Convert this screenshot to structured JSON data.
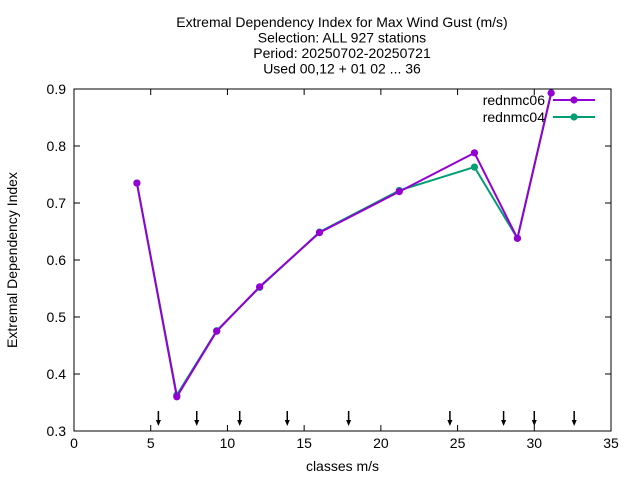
{
  "chart_data": {
    "type": "line",
    "title_lines": [
      "Extremal Dependency Index  for Max Wind Gust (m/s)",
      "Selection: ALL    927 stations",
      "Period: 20250702-20250721",
      "Used 00,12 + 01 02 ... 36"
    ],
    "xlabel": "classes m/s",
    "ylabel": "Extremal Dependency Index",
    "xlim": [
      0,
      35
    ],
    "ylim": [
      0.3,
      0.9
    ],
    "xticks": [
      0,
      5,
      10,
      15,
      20,
      25,
      30,
      35
    ],
    "yticks": [
      0.3,
      0.4,
      0.5,
      0.6,
      0.7,
      0.8,
      0.9
    ],
    "xtick_labels": [
      "0",
      "5",
      "10",
      "15",
      "20",
      "25",
      "30",
      "35"
    ],
    "ytick_labels": [
      "0.3",
      "0.4",
      "0.5",
      "0.6",
      "0.7",
      "0.8",
      "0.9"
    ],
    "legend_position": "top-right",
    "grid": false,
    "class_thresholds": [
      5.5,
      8,
      10.8,
      13.9,
      17.9,
      24.5,
      28,
      30,
      32.6
    ],
    "series": [
      {
        "name": "rednmc06",
        "color": "#9400d3",
        "x": [
          4.1,
          6.7,
          9.3,
          12.1,
          16.0,
          21.2,
          26.1,
          28.9,
          31.1
        ],
        "y": [
          0.735,
          0.36,
          0.475,
          0.553,
          0.648,
          0.72,
          0.788,
          0.638,
          0.893
        ]
      },
      {
        "name": "rednmc04",
        "color": "#009e73",
        "x": [
          4.1,
          6.7,
          9.3,
          12.1,
          16.0,
          21.2,
          26.1,
          28.9,
          31.1
        ],
        "y": [
          0.735,
          0.363,
          0.476,
          0.552,
          0.649,
          0.722,
          0.763,
          0.638,
          0.893
        ]
      }
    ]
  }
}
